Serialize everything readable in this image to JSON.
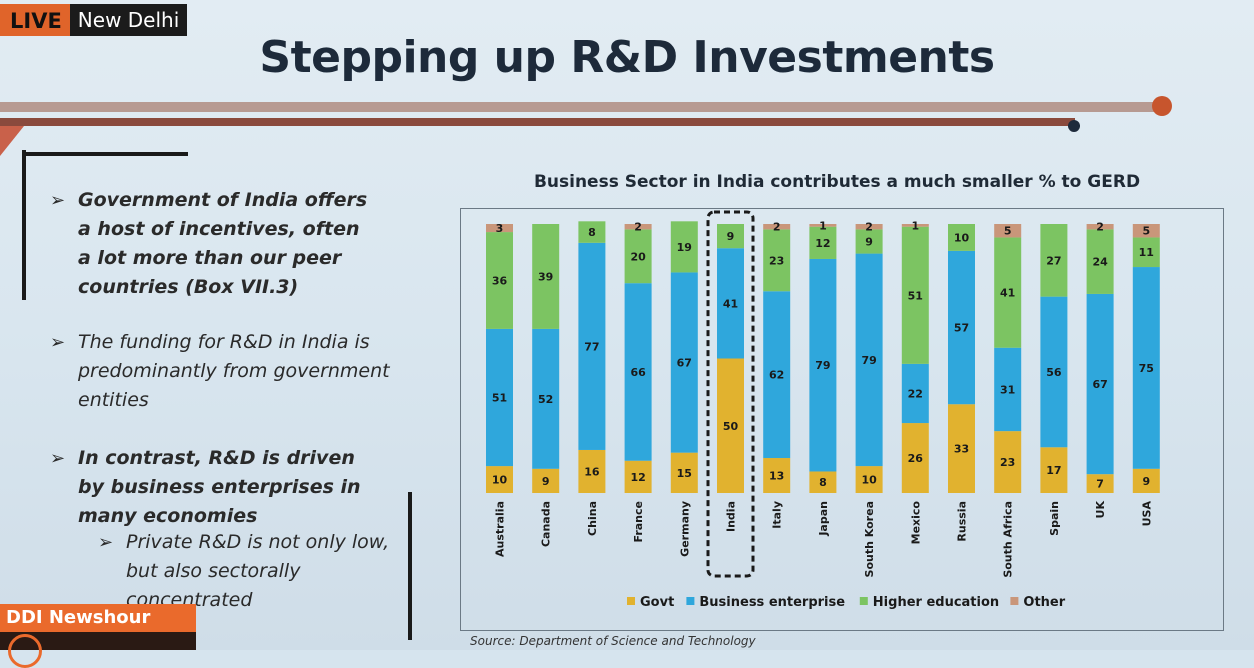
{
  "badge": {
    "live": "LIVE",
    "city": "New Delhi"
  },
  "slide": {
    "title": "Stepping up R&D Investments",
    "bullets": [
      "Government of India offers a host of incentives, often a lot more than our peer countries (Box VII.3)",
      "The funding for R&D in India is predominantly from government entities",
      "In contrast, R&D is driven by business enterprises in many economies",
      "Private R&D is not only low, but also sectorally concentrated"
    ],
    "source": "Source: Department of Science and Technology"
  },
  "channel": {
    "show": "DDI Newshour"
  },
  "colors": {
    "govt": "#e1b22f",
    "business": "#2fa7dc",
    "higher": "#7cc462",
    "other": "#c9967a",
    "highlight_box": "#1a1a1a"
  },
  "chart_data": {
    "type": "bar",
    "stacked": true,
    "percent": true,
    "title": "Business Sector in India contributes a much smaller % to GERD",
    "categories": [
      "Australia",
      "Canada",
      "China",
      "France",
      "Germany",
      "India",
      "Italy",
      "Japan",
      "South Korea",
      "Mexico",
      "Russia",
      "South Africa",
      "Spain",
      "UK",
      "USA"
    ],
    "highlighted_category": "India",
    "series": [
      {
        "name": "Govt",
        "values": [
          10,
          9,
          16,
          12,
          15,
          50,
          13,
          8,
          10,
          26,
          33,
          23,
          17,
          7,
          9
        ]
      },
      {
        "name": "Business enterprise",
        "values": [
          51,
          52,
          77,
          66,
          67,
          41,
          62,
          79,
          79,
          22,
          57,
          31,
          56,
          67,
          75
        ]
      },
      {
        "name": "Higher education",
        "values": [
          36,
          39,
          8,
          20,
          19,
          9,
          23,
          12,
          9,
          51,
          10,
          41,
          27,
          24,
          11
        ]
      },
      {
        "name": "Other",
        "values": [
          3,
          null,
          null,
          2,
          null,
          null,
          2,
          1,
          2,
          1,
          null,
          5,
          null,
          2,
          5
        ]
      }
    ],
    "ylim": [
      0,
      100
    ],
    "legend_position": "bottom"
  }
}
